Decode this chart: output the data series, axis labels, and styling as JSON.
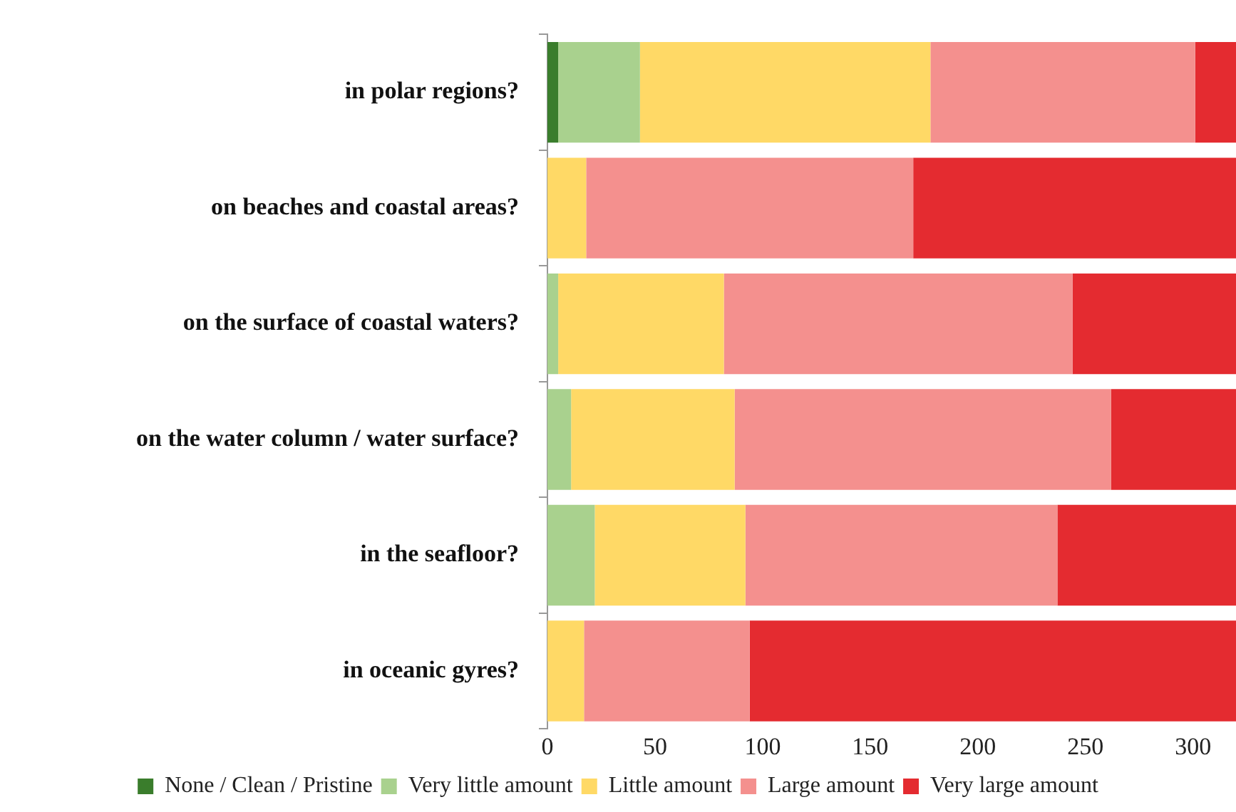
{
  "chart_data": {
    "type": "bar",
    "orientation": "horizontal",
    "stacked": true,
    "categories": [
      "in polar regions?",
      "on beaches and coastal areas?",
      "on the surface of coastal waters?",
      "on the water column / water surface?",
      "in the seafloor?",
      "in oceanic gyres?"
    ],
    "series": [
      {
        "name": "None / Clean / Pristine",
        "color": "#3a7d2c",
        "values": [
          5,
          0,
          0,
          0,
          0,
          0
        ]
      },
      {
        "name": "Very little amount",
        "color": "#a9d18e",
        "values": [
          38,
          0,
          5,
          11,
          22,
          0
        ]
      },
      {
        "name": "Little amount",
        "color": "#ffd966",
        "values": [
          135,
          18,
          77,
          76,
          70,
          17
        ]
      },
      {
        "name": "Large amount",
        "color": "#f4908e",
        "values": [
          123,
          152,
          162,
          175,
          145,
          77
        ]
      },
      {
        "name": "Very large amount",
        "color": "#e42b30",
        "values": [
          19,
          150,
          76,
          58,
          83,
          226
        ]
      }
    ],
    "xlim": [
      0,
      320
    ],
    "xticks": [
      0,
      50,
      100,
      150,
      200,
      250,
      300
    ],
    "legend": "bottom"
  }
}
